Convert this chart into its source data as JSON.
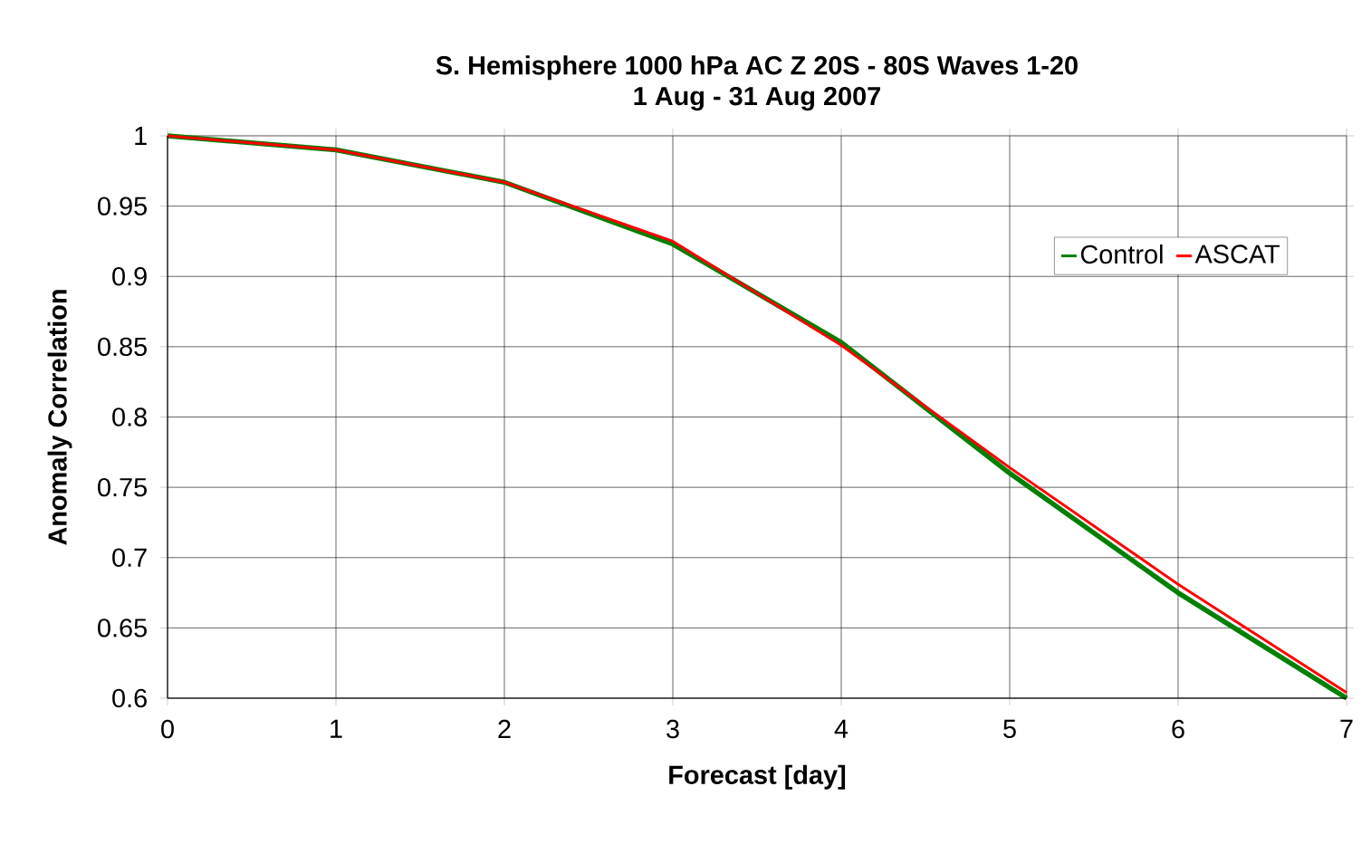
{
  "chart_data": {
    "type": "line",
    "title": "S. Hemisphere 1000 hPa AC Z 20S - 80S Waves 1-20",
    "subtitle": "1 Aug - 31 Aug 2007",
    "xlabel": "Forecast [day]",
    "ylabel": "Anomaly Correlation",
    "x": [
      0,
      1,
      2,
      3,
      4,
      5,
      6,
      7
    ],
    "series": [
      {
        "name": "Control",
        "color": "#008000",
        "values": [
          1.0,
          0.99,
          0.967,
          0.923,
          0.853,
          0.76,
          0.675,
          0.6
        ]
      },
      {
        "name": "ASCAT",
        "color": "#ff0000",
        "values": [
          1.0,
          0.99,
          0.967,
          0.925,
          0.851,
          0.764,
          0.681,
          0.604
        ]
      }
    ],
    "xlim": [
      0,
      7
    ],
    "xticks": [
      0,
      1,
      2,
      3,
      4,
      5,
      6,
      7
    ],
    "ylim": [
      0.6,
      1
    ],
    "yticks": [
      0.6,
      0.65,
      0.7,
      0.75,
      0.8,
      0.85,
      0.9,
      0.95,
      1
    ],
    "grid": true,
    "legend": "top right",
    "marker": "none",
    "line_style": "solid"
  }
}
